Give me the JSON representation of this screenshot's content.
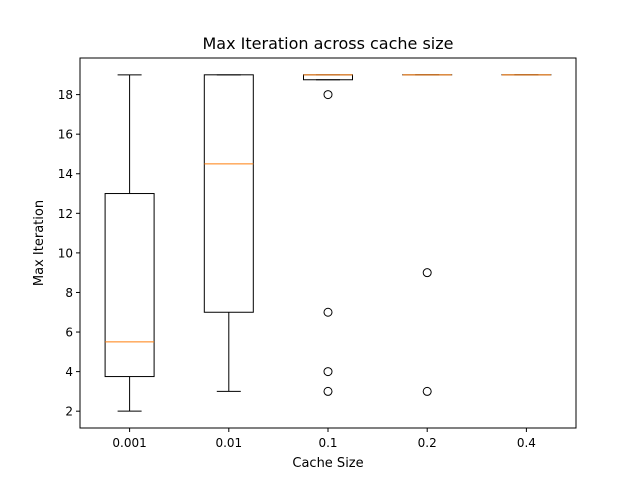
{
  "chart_data": {
    "type": "box",
    "title": "Max Iteration across cache size",
    "xlabel": "Cache Size",
    "ylabel": "Max Iteration",
    "ylim": [
      1.15,
      19.85
    ],
    "yticks": [
      2,
      4,
      6,
      8,
      10,
      12,
      14,
      16,
      18
    ],
    "grid": false,
    "categories": [
      "0.001",
      "0.01",
      "0.1",
      "0.2",
      "0.4"
    ],
    "boxes": [
      {
        "category": "0.001",
        "whisker_low": 2,
        "q1": 3.75,
        "median": 5.5,
        "q3": 13,
        "whisker_high": 19,
        "outliers": []
      },
      {
        "category": "0.01",
        "whisker_low": 3,
        "q1": 7,
        "median": 14.5,
        "q3": 19,
        "whisker_high": 19,
        "outliers": []
      },
      {
        "category": "0.1",
        "whisker_low": 18.75,
        "q1": 18.75,
        "median": 19,
        "q3": 19,
        "whisker_high": 19,
        "outliers": [
          18,
          7,
          4,
          3
        ]
      },
      {
        "category": "0.2",
        "whisker_low": 19,
        "q1": 19,
        "median": 19,
        "q3": 19,
        "whisker_high": 19,
        "outliers": [
          9,
          3
        ]
      },
      {
        "category": "0.4",
        "whisker_low": 19,
        "q1": 19,
        "median": 19,
        "q3": 19,
        "whisker_high": 19,
        "outliers": []
      }
    ],
    "colors": {
      "box": "#000000",
      "median": "#ff7f0e",
      "outlier": "#000000"
    }
  }
}
